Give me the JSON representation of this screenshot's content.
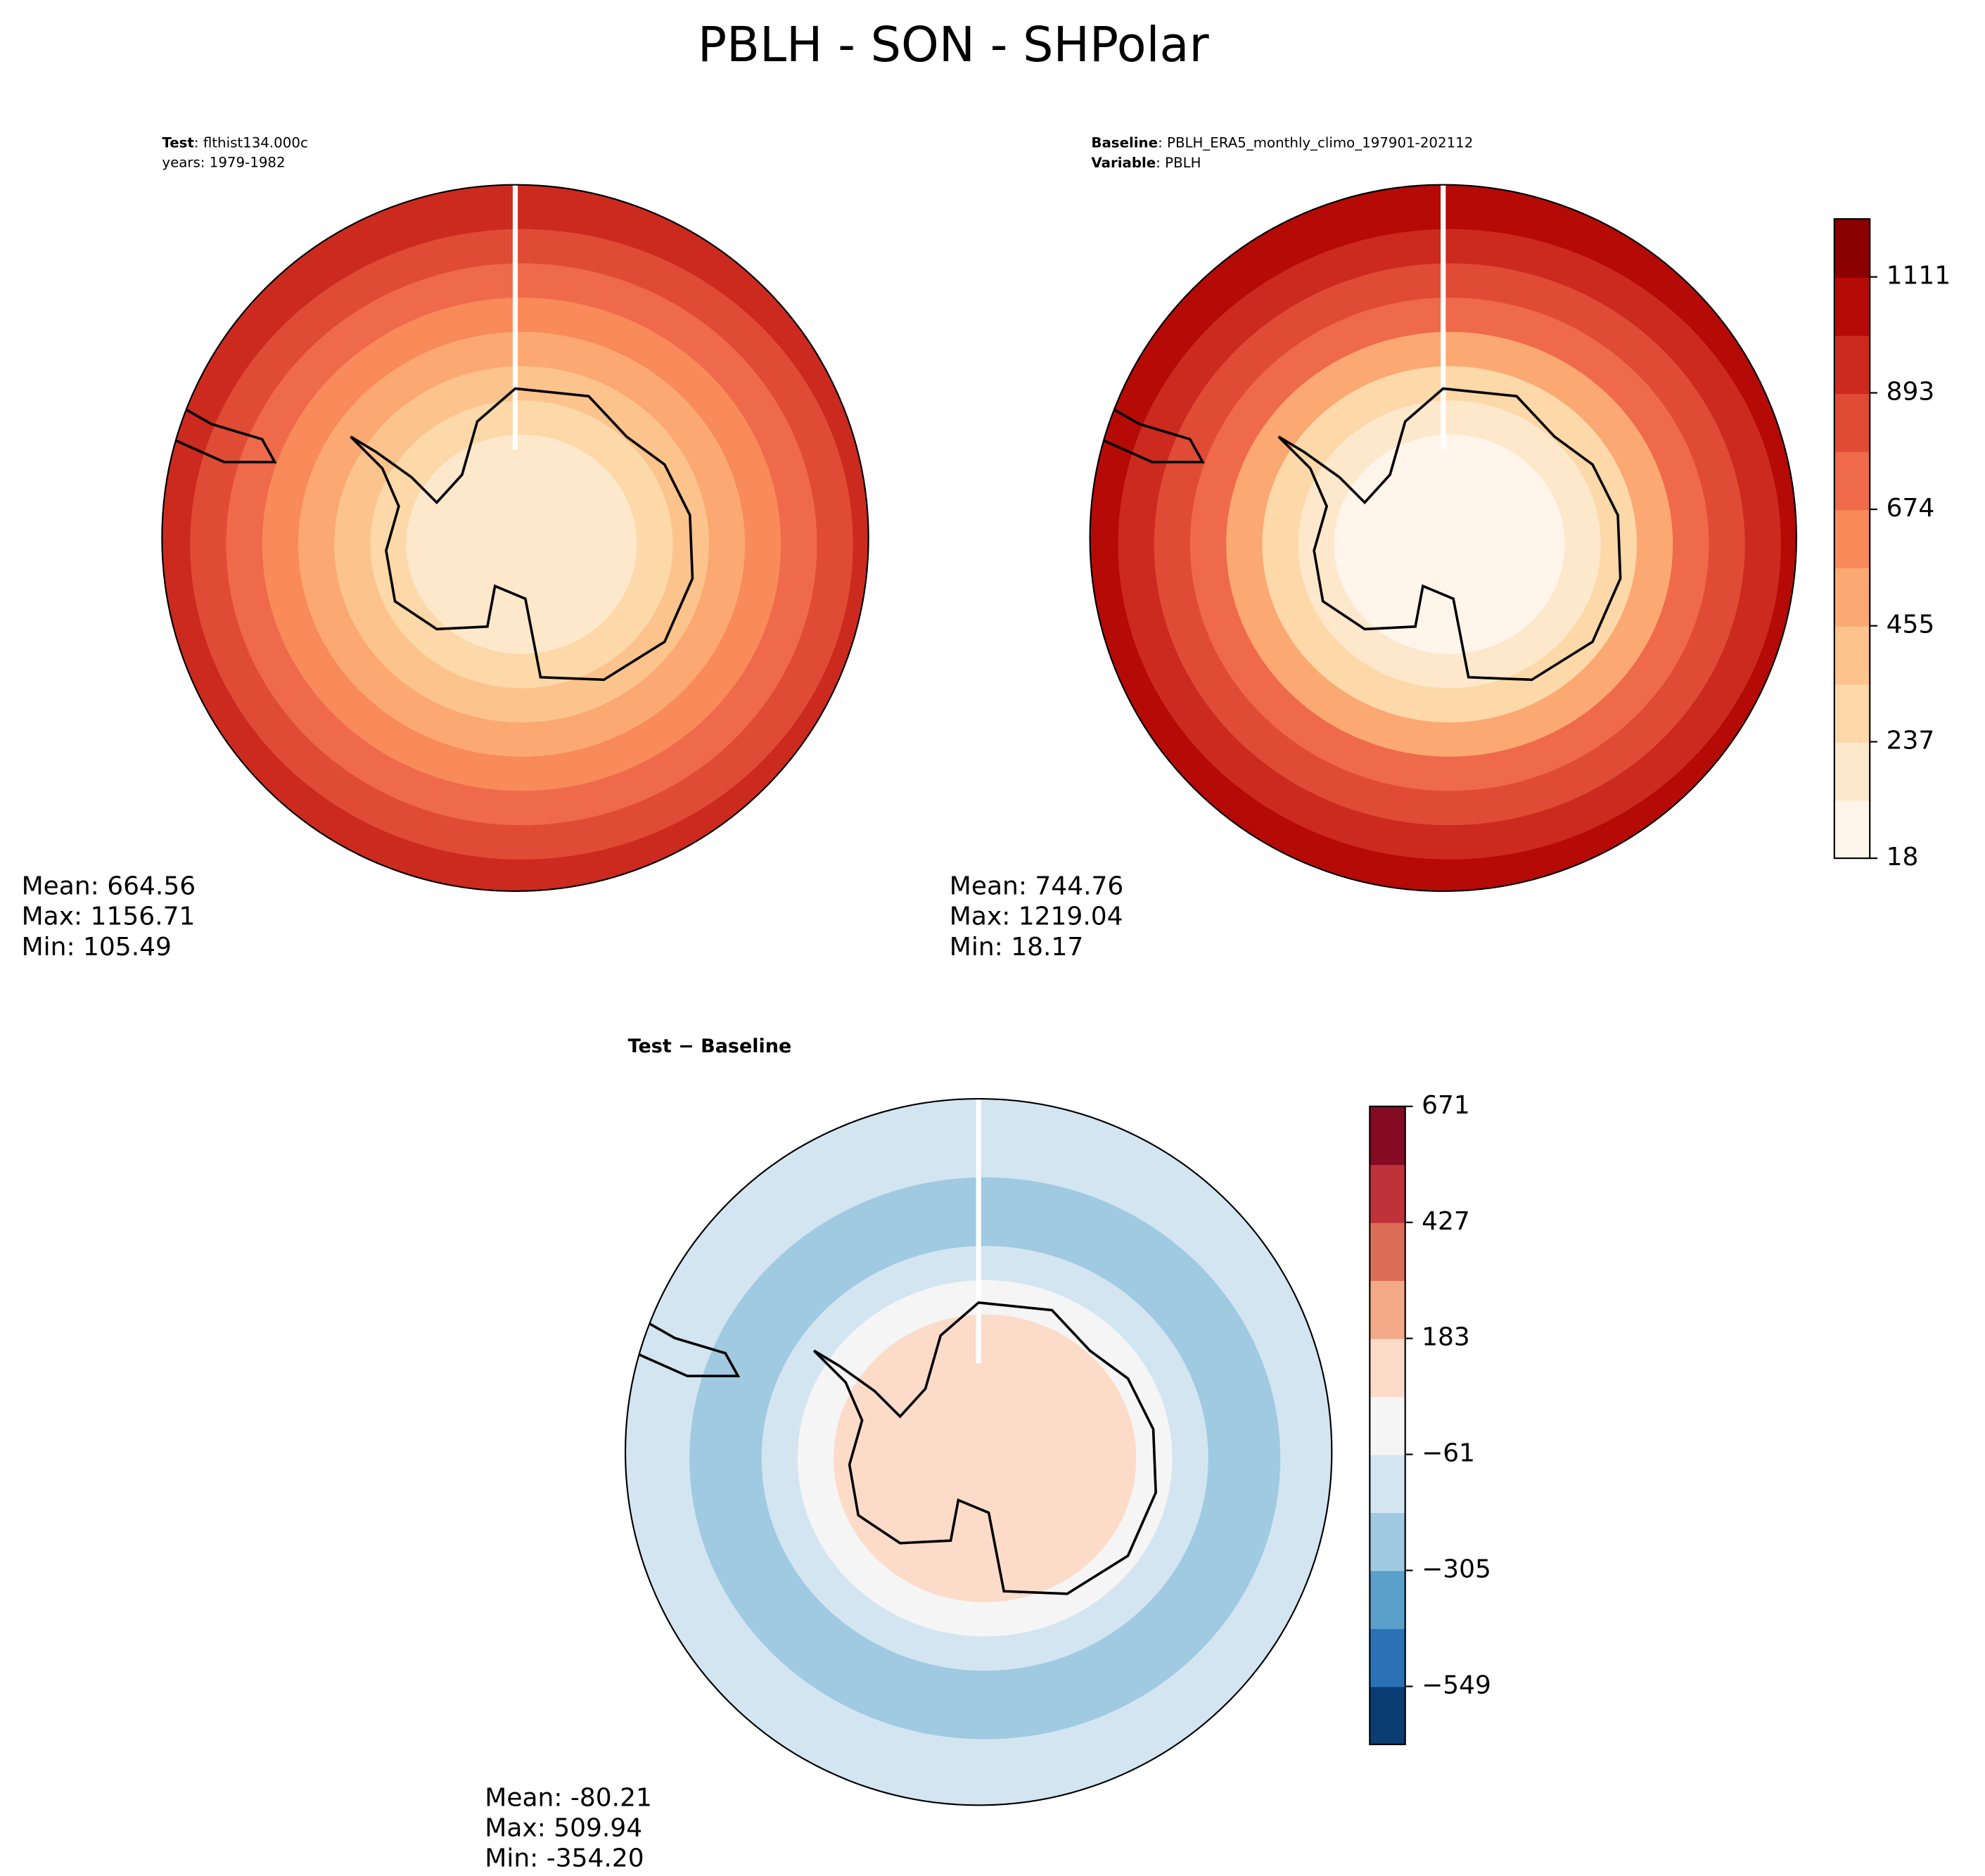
{
  "title": "PBLH - SON - SHPolar",
  "panels": [
    {
      "key1": "Test",
      "text1": ": flthist134.000c",
      "line2": "years: 1979-1982",
      "stats": [
        "Mean: 664.56",
        "Max: 1156.71",
        "Min: 105.49"
      ]
    },
    {
      "key1": "Baseline",
      "text1": ": PBLH_ERA5_monthly_climo_197901-202112",
      "key2": "Variable",
      "text2": ": PBLH",
      "stats": [
        "Mean: 744.76",
        "Max: 1219.04",
        "Min: 18.17"
      ]
    },
    {
      "key1": "Test − Baseline",
      "stats": [
        "Mean: -80.21",
        "Max: 509.94",
        "Min: -354.20"
      ]
    }
  ],
  "colorbars": [
    {
      "lim": [
        18,
        1220
      ],
      "ticks": [
        18,
        237,
        455,
        674,
        893,
        1111
      ],
      "colors": [
        "#fff5eb",
        "#fee8cc",
        "#fdd8a8",
        "#fdc38d",
        "#fca872",
        "#f98a5a",
        "#ef6a4a",
        "#e04b36",
        "#cc2a1f",
        "#b50a06",
        "#8b0000"
      ]
    },
    {
      "lim": [
        -671,
        671
      ],
      "ticks": [
        {
          "value": -549,
          "label": "−549"
        },
        {
          "value": -305,
          "label": "−305"
        },
        {
          "value": -61,
          "label": "−61"
        },
        183,
        427,
        671
      ],
      "colors": [
        "#0b3d73",
        "#2a72b5",
        "#5aa0cb",
        "#9fcae1",
        "#d3e5f1",
        "#f5f5f5",
        "#fcdbc8",
        "#f4aa88",
        "#dc6e58",
        "#c0323a",
        "#850a24"
      ]
    }
  ]
}
